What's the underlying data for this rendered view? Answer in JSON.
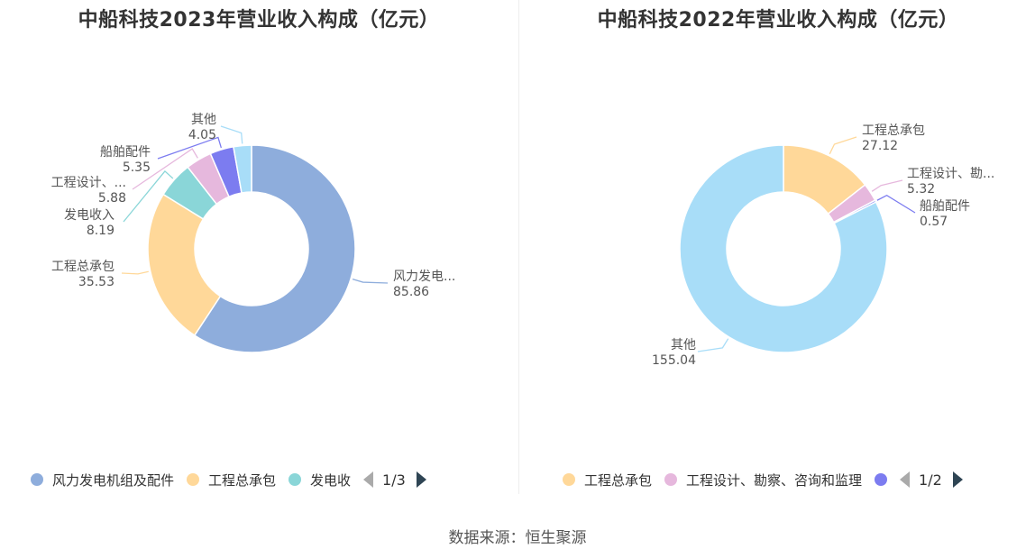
{
  "footer": {
    "source": "数据来源：恒生聚源"
  },
  "chart_data": [
    {
      "type": "pie",
      "title": "中船科技2023年营业收入构成（亿元）",
      "unit": "亿元",
      "donut": true,
      "categories": [
        "风力发电机组及配件",
        "工程总承包",
        "发电收入",
        "工程设计、勘察、咨询和监理",
        "船舶配件",
        "其他"
      ],
      "values": [
        85.86,
        35.53,
        8.19,
        5.88,
        5.35,
        4.05
      ],
      "slice_labels": [
        "风力发电...",
        "工程总承包",
        "发电收入",
        "工程设计、...",
        "船舶配件",
        "其他"
      ],
      "value_labels": [
        "85.86",
        "35.53",
        "8.19",
        "5.88",
        "5.35",
        "4.05"
      ],
      "colors": [
        "#8eaddc",
        "#ffd899",
        "#8ad6d8",
        "#e6b8dd",
        "#7c7cf0",
        "#a8ddf8"
      ],
      "legend": {
        "position": "bottom",
        "visible_items": [
          "风力发电机组及配件",
          "工程总承包",
          "发电收"
        ],
        "visible_colors": [
          "#8eaddc",
          "#ffd899",
          "#8ad6d8"
        ],
        "page": "1/3"
      }
    },
    {
      "type": "pie",
      "title": "中船科技2022年营业收入构成（亿元）",
      "unit": "亿元",
      "donut": true,
      "categories": [
        "工程总承包",
        "工程设计、勘察、咨询和监理",
        "船舶配件",
        "其他"
      ],
      "values": [
        27.12,
        5.32,
        0.57,
        155.04
      ],
      "slice_labels": [
        "工程总承包",
        "工程设计、勘...",
        "船舶配件",
        "其他"
      ],
      "value_labels": [
        "27.12",
        "5.32",
        "0.57",
        "155.04"
      ],
      "colors": [
        "#ffd899",
        "#e6b8dd",
        "#7c7cf0",
        "#a8ddf8"
      ],
      "legend": {
        "position": "bottom",
        "visible_items": [
          "工程总承包",
          "工程设计、勘察、咨询和监理",
          ""
        ],
        "visible_colors": [
          "#ffd899",
          "#e6b8dd",
          "#7c7cf0"
        ],
        "page": "1/2"
      }
    }
  ]
}
